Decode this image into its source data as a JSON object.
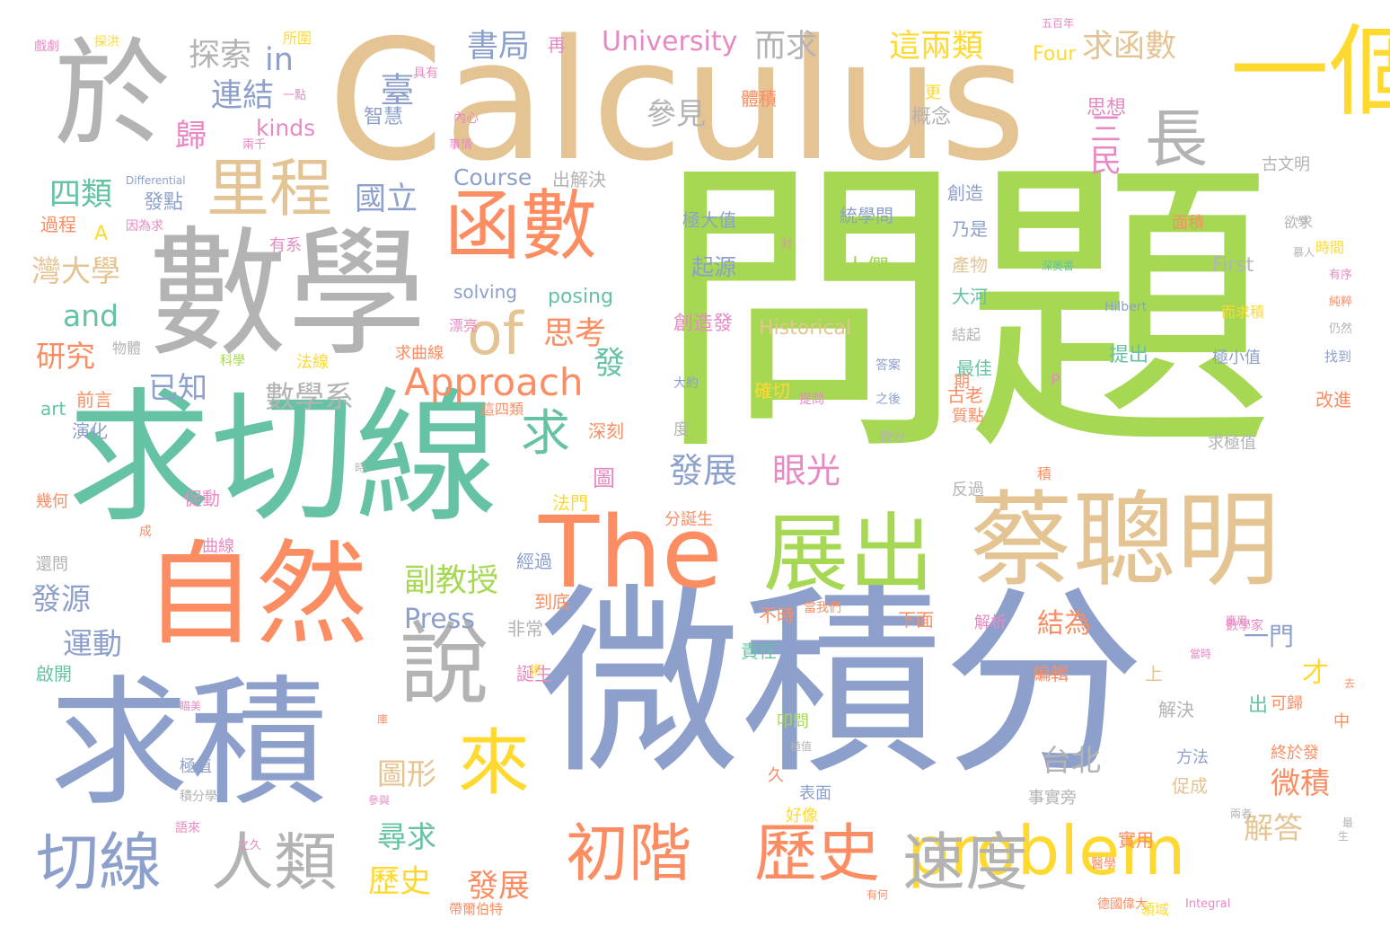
{
  "palette": {
    "green": "#a6d854",
    "blue": "#8da0cb",
    "tan": "#e5c494",
    "gray": "#b3b3b3",
    "orange": "#fc8d62",
    "teal": "#66c2a5",
    "yellow": "#ffd92f",
    "pink": "#e78ac3"
  },
  "words": [
    {
      "text": "問題",
      "color": "green"
    },
    {
      "text": "微積分",
      "color": "blue"
    },
    {
      "text": "Calculus",
      "color": "tan"
    },
    {
      "text": "數學",
      "color": "gray"
    },
    {
      "text": "求切線",
      "color": "teal"
    },
    {
      "text": "求積",
      "color": "blue"
    },
    {
      "text": "於",
      "color": "gray"
    },
    {
      "text": "蔡聰明",
      "color": "tan"
    },
    {
      "text": "自然",
      "color": "orange"
    },
    {
      "text": "The",
      "color": "orange"
    },
    {
      "text": "一個",
      "color": "yellow"
    },
    {
      "text": "展出",
      "color": "green"
    },
    {
      "text": "函數",
      "color": "orange"
    },
    {
      "text": "說",
      "color": "gray"
    },
    {
      "text": "里程",
      "color": "tan"
    },
    {
      "text": "problem",
      "color": "yellow"
    },
    {
      "text": "來",
      "color": "yellow"
    },
    {
      "text": "切線",
      "color": "blue"
    },
    {
      "text": "人類",
      "color": "gray"
    },
    {
      "text": "初階",
      "color": "orange"
    },
    {
      "text": "歷史",
      "color": "orange"
    },
    {
      "text": "速度",
      "color": "gray"
    },
    {
      "text": "長",
      "color": "gray"
    },
    {
      "text": "of",
      "color": "tan"
    },
    {
      "text": "求",
      "color": "teal"
    },
    {
      "text": "Approach",
      "color": "orange"
    },
    {
      "text": "書局",
      "color": "blue"
    },
    {
      "text": "這兩類",
      "color": "yellow"
    },
    {
      "text": "求函數",
      "color": "tan"
    },
    {
      "text": "探索",
      "color": "gray"
    },
    {
      "text": "in",
      "color": "blue"
    },
    {
      "text": "而求",
      "color": "gray"
    },
    {
      "text": "University",
      "color": "pink"
    },
    {
      "text": "連結",
      "color": "blue"
    },
    {
      "text": "參見",
      "color": "gray"
    },
    {
      "text": "歸",
      "color": "pink"
    },
    {
      "text": "kinds",
      "color": "pink"
    },
    {
      "text": "四類",
      "color": "teal"
    },
    {
      "text": "國立",
      "color": "blue"
    },
    {
      "text": "Course",
      "color": "blue"
    },
    {
      "text": "灣大學",
      "color": "tan"
    },
    {
      "text": "and",
      "color": "teal"
    },
    {
      "text": "研究",
      "color": "orange"
    },
    {
      "text": "已知",
      "color": "blue"
    },
    {
      "text": "數學系",
      "color": "gray"
    },
    {
      "text": "思考",
      "color": "orange"
    },
    {
      "text": "發展",
      "color": "blue"
    },
    {
      "text": "眼光",
      "color": "pink"
    },
    {
      "text": "副教授",
      "color": "green"
    },
    {
      "text": "Press",
      "color": "blue"
    },
    {
      "text": "結為",
      "color": "orange"
    },
    {
      "text": "一門",
      "color": "blue"
    },
    {
      "text": "運動",
      "color": "blue"
    },
    {
      "text": "發源",
      "color": "blue"
    },
    {
      "text": "台北",
      "color": "gray"
    },
    {
      "text": "圖形",
      "color": "tan"
    },
    {
      "text": "尋求",
      "color": "teal"
    },
    {
      "text": "歷史",
      "color": "yellow"
    },
    {
      "text": "發展",
      "color": "orange"
    },
    {
      "text": "解答",
      "color": "tan"
    },
    {
      "text": "微積",
      "color": "orange"
    },
    {
      "text": "起源",
      "color": "blue"
    },
    {
      "text": "人們",
      "color": "green"
    },
    {
      "text": "極大值",
      "color": "blue"
    },
    {
      "text": "統學問",
      "color": "blue"
    },
    {
      "text": "創造發",
      "color": "pink"
    },
    {
      "text": "Historical",
      "color": "tan"
    },
    {
      "text": "確切",
      "color": "yellow"
    },
    {
      "text": "發",
      "color": "teal"
    },
    {
      "text": "提出",
      "color": "teal"
    },
    {
      "text": "極小值",
      "color": "blue"
    },
    {
      "text": "First",
      "color": "gray"
    },
    {
      "text": "Four",
      "color": "yellow"
    },
    {
      "text": "思想",
      "color": "pink"
    },
    {
      "text": "三民",
      "color": "pink"
    },
    {
      "text": "古文明",
      "color": "gray"
    },
    {
      "text": "智慧",
      "color": "blue"
    },
    {
      "text": "概念",
      "color": "gray"
    },
    {
      "text": "創造",
      "color": "blue"
    },
    {
      "text": "乃是",
      "color": "blue"
    },
    {
      "text": "產物",
      "color": "tan"
    },
    {
      "text": "大河",
      "color": "teal"
    },
    {
      "text": "最佳",
      "color": "teal"
    },
    {
      "text": "古老",
      "color": "orange"
    },
    {
      "text": "solving",
      "color": "blue"
    },
    {
      "text": "posing",
      "color": "teal"
    },
    {
      "text": "臺",
      "color": "blue"
    },
    {
      "text": "再",
      "color": "pink"
    },
    {
      "text": "出解決",
      "color": "gray"
    },
    {
      "text": "發點",
      "color": "blue"
    },
    {
      "text": "過程",
      "color": "orange"
    },
    {
      "text": "有系",
      "color": "pink"
    },
    {
      "text": "A",
      "color": "yellow"
    },
    {
      "text": "前言",
      "color": "orange"
    },
    {
      "text": "art",
      "color": "teal"
    },
    {
      "text": "演化",
      "color": "blue"
    },
    {
      "text": "法線",
      "color": "yellow"
    },
    {
      "text": "深刻",
      "color": "orange"
    },
    {
      "text": "圖",
      "color": "pink"
    },
    {
      "text": "促動",
      "color": "pink"
    },
    {
      "text": "幾何",
      "color": "orange"
    },
    {
      "text": "曲線",
      "color": "pink"
    },
    {
      "text": "法門",
      "color": "yellow"
    },
    {
      "text": "分誕生",
      "color": "orange"
    },
    {
      "text": "度",
      "color": "gray"
    },
    {
      "text": "不時",
      "color": "orange"
    },
    {
      "text": "責任",
      "color": "teal"
    },
    {
      "text": "下面",
      "color": "orange"
    },
    {
      "text": "解析",
      "color": "pink"
    },
    {
      "text": "啟開",
      "color": "teal"
    },
    {
      "text": "非常",
      "color": "gray"
    },
    {
      "text": "誕生",
      "color": "pink"
    },
    {
      "text": "到底",
      "color": "orange"
    },
    {
      "text": "經過",
      "color": "blue"
    },
    {
      "text": "編輯",
      "color": "orange"
    },
    {
      "text": "解決",
      "color": "gray"
    },
    {
      "text": "上",
      "color": "tan"
    },
    {
      "text": "才",
      "color": "yellow"
    },
    {
      "text": "出",
      "color": "teal"
    },
    {
      "text": "中",
      "color": "orange"
    },
    {
      "text": "方法",
      "color": "blue"
    },
    {
      "text": "促成",
      "color": "tan"
    },
    {
      "text": "事實旁",
      "color": "gray"
    },
    {
      "text": "終於發",
      "color": "orange"
    },
    {
      "text": "實用",
      "color": "orange"
    },
    {
      "text": "好像",
      "color": "yellow"
    },
    {
      "text": "表面",
      "color": "blue"
    },
    {
      "text": "叩問",
      "color": "green"
    },
    {
      "text": "極值",
      "color": "blue"
    },
    {
      "text": "還問",
      "color": "gray"
    },
    {
      "text": "求極值",
      "color": "gray"
    },
    {
      "text": "改進",
      "color": "orange"
    },
    {
      "text": "找到",
      "color": "blue"
    },
    {
      "text": "可歸",
      "color": "orange"
    },
    {
      "text": "Differential",
      "color": "blue"
    },
    {
      "text": "Hilbert",
      "color": "blue"
    },
    {
      "text": "Integral",
      "color": "pink"
    },
    {
      "text": "求曲線",
      "color": "orange"
    },
    {
      "text": "物體",
      "color": "gray"
    },
    {
      "text": "科學",
      "color": "green"
    },
    {
      "text": "面積",
      "color": "orange"
    },
    {
      "text": "欲求",
      "color": "gray"
    },
    {
      "text": "時間",
      "color": "yellow"
    },
    {
      "text": "反過",
      "color": "gray"
    },
    {
      "text": "期",
      "color": "orange"
    },
    {
      "text": "質點",
      "color": "orange"
    },
    {
      "text": "積",
      "color": "orange"
    },
    {
      "text": "更",
      "color": "yellow"
    },
    {
      "text": "體積",
      "color": "orange"
    },
    {
      "text": "探洪",
      "color": "yellow"
    },
    {
      "text": "戲劇",
      "color": "pink"
    },
    {
      "text": "所圍",
      "color": "yellow"
    },
    {
      "text": "具有",
      "color": "pink"
    },
    {
      "text": "內心",
      "color": "pink"
    },
    {
      "text": "事情",
      "color": "pink"
    },
    {
      "text": "兩千",
      "color": "pink"
    },
    {
      "text": "一點",
      "color": "pink"
    },
    {
      "text": "五百年",
      "color": "pink"
    },
    {
      "text": "因為求",
      "color": "pink"
    },
    {
      "text": "深奧書",
      "color": "teal"
    },
    {
      "text": "有序",
      "color": "pink"
    },
    {
      "text": "而求積",
      "color": "yellow"
    },
    {
      "text": "結起",
      "color": "gray"
    },
    {
      "text": "大約",
      "color": "blue"
    },
    {
      "text": "提問",
      "color": "pink"
    },
    {
      "text": "答案",
      "color": "blue"
    },
    {
      "text": "之後",
      "color": "blue"
    },
    {
      "text": "微分",
      "color": "gray"
    },
    {
      "text": "漂亮",
      "color": "pink"
    },
    {
      "text": "這四類",
      "color": "orange"
    },
    {
      "text": "當我們",
      "color": "orange"
    },
    {
      "text": "數學家",
      "color": "pink"
    },
    {
      "text": "德國偉大",
      "color": "orange"
    },
    {
      "text": "帶爾伯特",
      "color": "orange"
    },
    {
      "text": "領域",
      "color": "yellow"
    },
    {
      "text": "語來",
      "color": "pink"
    },
    {
      "text": "之久",
      "color": "pink"
    },
    {
      "text": "有何",
      "color": "orange"
    },
    {
      "text": "瞄美",
      "color": "pink"
    },
    {
      "text": "仍然",
      "color": "gray"
    },
    {
      "text": "純粹",
      "color": "orange"
    },
    {
      "text": "成",
      "color": "orange"
    },
    {
      "text": "積分學",
      "color": "gray"
    },
    {
      "text": "P",
      "color": "pink"
    },
    {
      "text": "久",
      "color": "orange"
    },
    {
      "text": "去",
      "color": "orange"
    },
    {
      "text": "最",
      "color": "gray"
    },
    {
      "text": "生",
      "color": "gray"
    },
    {
      "text": "庫",
      "color": "orange"
    },
    {
      "text": "術",
      "color": "yellow"
    },
    {
      "text": "時",
      "color": "gray"
    },
    {
      "text": "封",
      "color": "pink"
    },
    {
      "text": "學",
      "color": "gray"
    },
    {
      "text": "慕人",
      "color": "gray"
    },
    {
      "text": "應用",
      "color": "pink"
    },
    {
      "text": "當時",
      "color": "pink"
    },
    {
      "text": "兩者",
      "color": "gray"
    },
    {
      "text": "極值",
      "color": "gray"
    },
    {
      "text": "參與",
      "color": "pink"
    },
    {
      "text": "醫學",
      "color": "orange"
    },
    {
      "text": "函數",
      "color": "gray"
    }
  ]
}
